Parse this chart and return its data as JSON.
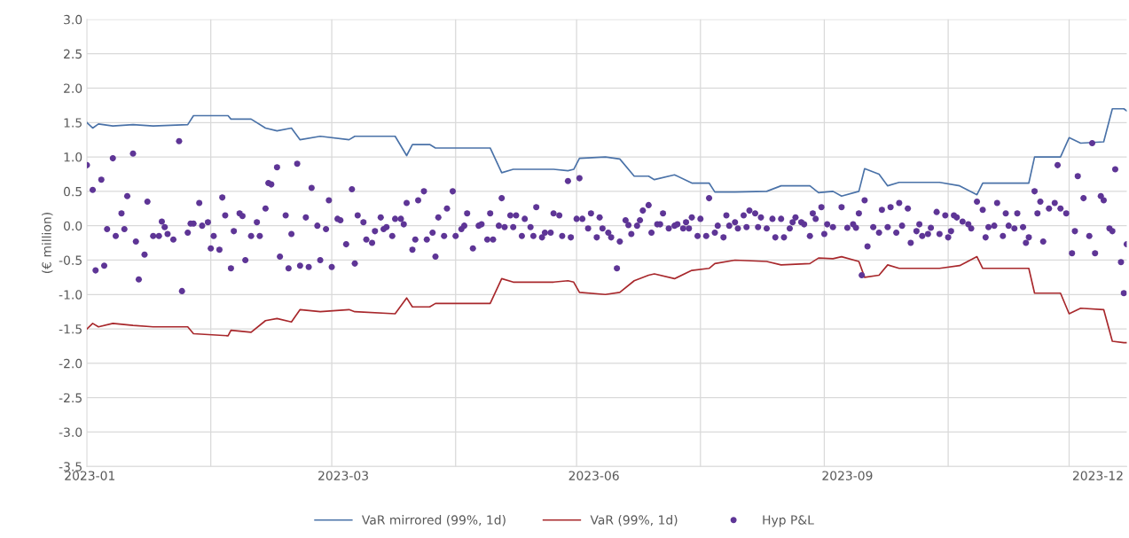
{
  "chart_data": {
    "type": "line",
    "ylabel": "(€ million)",
    "xlim": [
      "2023-01-02",
      "2023-12-29"
    ],
    "xticks": [
      {
        "value": "2023-01-03",
        "label": "2023-01"
      },
      {
        "value": "2023-02-14",
        "label": null
      },
      {
        "value": "2023-03-28",
        "label": null
      },
      {
        "value": "2023-04-01",
        "label": "2023-03"
      },
      {
        "value": "2023-05-10",
        "label": null
      },
      {
        "value": "2023-06-21",
        "label": null
      },
      {
        "value": "2023-06-27",
        "label": "2023-06"
      },
      {
        "value": "2023-08-03",
        "label": null
      },
      {
        "value": "2023-09-15",
        "label": null
      },
      {
        "value": "2023-09-23",
        "label": "2023-09"
      },
      {
        "value": "2023-10-28",
        "label": null
      },
      {
        "value": "2023-12-09",
        "label": null
      },
      {
        "value": "2023-12-19",
        "label": "2023-12"
      }
    ],
    "ylim": [
      -3.5,
      3.0
    ],
    "yticks": [
      {
        "value": -3.5,
        "label": "-3.5"
      },
      {
        "value": -3,
        "label": "-3.0"
      },
      {
        "value": -2.5,
        "label": "-2.5"
      },
      {
        "value": -2,
        "label": "-2.0"
      },
      {
        "value": -1.5,
        "label": "-1.5"
      },
      {
        "value": -1,
        "label": "-1.0"
      },
      {
        "value": -0.5,
        "label": "-0.5"
      },
      {
        "value": 0,
        "label": "0.0"
      },
      {
        "value": 0.5,
        "label": "0.5"
      },
      {
        "value": 1,
        "label": "1.0"
      },
      {
        "value": 1.5,
        "label": "1.5"
      },
      {
        "value": 2,
        "label": "2.0"
      },
      {
        "value": 2.5,
        "label": "2.5"
      },
      {
        "value": 3,
        "label": "3.0"
      }
    ],
    "grid": true,
    "legend": "bottom",
    "line_style": "solid",
    "x": [
      "2023-01-02",
      "2023-01-04",
      "2023-01-06",
      "2023-01-11",
      "2023-01-18",
      "2023-01-25",
      "2023-02-06",
      "2023-02-08",
      "2023-02-20",
      "2023-02-21",
      "2023-02-28",
      "2023-03-05",
      "2023-03-09",
      "2023-03-14",
      "2023-03-17",
      "2023-03-24",
      "2023-04-03",
      "2023-04-05",
      "2023-04-19",
      "2023-04-23",
      "2023-04-25",
      "2023-05-01",
      "2023-05-03",
      "2023-05-22",
      "2023-05-26",
      "2023-05-30",
      "2023-06-13",
      "2023-06-18",
      "2023-06-20",
      "2023-06-22",
      "2023-07-01",
      "2023-07-06",
      "2023-07-11",
      "2023-07-16",
      "2023-07-18",
      "2023-07-25",
      "2023-07-31",
      "2023-08-06",
      "2023-08-08",
      "2023-08-15",
      "2023-08-26",
      "2023-08-31",
      "2023-09-10",
      "2023-09-13",
      "2023-09-18",
      "2023-09-21",
      "2023-09-27",
      "2023-09-29",
      "2023-10-04",
      "2023-10-07",
      "2023-10-11",
      "2023-10-25",
      "2023-11-01",
      "2023-11-07",
      "2023-11-09",
      "2023-11-25",
      "2023-11-27",
      "2023-12-06",
      "2023-12-09",
      "2023-12-13",
      "2023-12-21",
      "2023-12-24",
      "2023-12-28",
      "2023-12-29"
    ],
    "series": [
      {
        "name": "VaR mirrored (99%, 1d)",
        "color": "#4a72a8",
        "values": [
          1.5,
          1.42,
          1.48,
          1.45,
          1.47,
          1.45,
          1.47,
          1.6,
          1.6,
          1.55,
          1.55,
          1.42,
          1.38,
          1.42,
          1.25,
          1.3,
          1.25,
          1.3,
          1.3,
          1.02,
          1.18,
          1.18,
          1.13,
          1.13,
          0.77,
          0.82,
          0.82,
          0.8,
          0.82,
          0.98,
          1.0,
          0.97,
          0.72,
          0.72,
          0.67,
          0.74,
          0.62,
          0.62,
          0.49,
          0.49,
          0.5,
          0.58,
          0.58,
          0.48,
          0.5,
          0.43,
          0.5,
          0.83,
          0.75,
          0.58,
          0.63,
          0.63,
          0.58,
          0.45,
          0.62,
          0.62,
          1.0,
          1.0,
          1.28,
          1.2,
          1.22,
          1.7,
          1.7,
          1.67
        ]
      },
      {
        "name": "VaR (99%, 1d)",
        "color": "#a8282c",
        "values": [
          -1.5,
          -1.42,
          -1.47,
          -1.42,
          -1.45,
          -1.47,
          -1.47,
          -1.57,
          -1.6,
          -1.52,
          -1.55,
          -1.38,
          -1.35,
          -1.4,
          -1.22,
          -1.25,
          -1.22,
          -1.25,
          -1.28,
          -1.05,
          -1.18,
          -1.18,
          -1.13,
          -1.13,
          -0.77,
          -0.82,
          -0.82,
          -0.8,
          -0.82,
          -0.97,
          -1.0,
          -0.97,
          -0.8,
          -0.72,
          -0.7,
          -0.77,
          -0.65,
          -0.62,
          -0.55,
          -0.5,
          -0.52,
          -0.57,
          -0.55,
          -0.47,
          -0.48,
          -0.45,
          -0.52,
          -0.75,
          -0.72,
          -0.57,
          -0.62,
          -0.62,
          -0.58,
          -0.45,
          -0.62,
          -0.62,
          -0.98,
          -0.98,
          -1.28,
          -1.2,
          -1.22,
          -1.68,
          -1.7,
          -1.7
        ]
      },
      {
        "name": "Hyp P&L",
        "type": "scatter",
        "color": "#5e3596",
        "marker": "circle",
        "x": [
          "2023-01-02",
          "2023-01-04",
          "2023-01-05",
          "2023-01-07",
          "2023-01-08",
          "2023-01-09",
          "2023-01-11",
          "2023-01-12",
          "2023-01-14",
          "2023-01-15",
          "2023-01-16",
          "2023-01-18",
          "2023-01-19",
          "2023-01-20",
          "2023-01-22",
          "2023-01-23",
          "2023-01-25",
          "2023-01-27",
          "2023-01-28",
          "2023-01-29",
          "2023-01-30",
          "2023-02-01",
          "2023-02-03",
          "2023-02-04",
          "2023-02-06",
          "2023-02-07",
          "2023-02-08",
          "2023-02-10",
          "2023-02-11",
          "2023-02-13",
          "2023-02-14",
          "2023-02-15",
          "2023-02-17",
          "2023-02-18",
          "2023-02-19",
          "2023-02-21",
          "2023-02-22",
          "2023-02-24",
          "2023-02-25",
          "2023-02-26",
          "2023-02-28",
          "2023-03-02",
          "2023-03-03",
          "2023-03-05",
          "2023-03-06",
          "2023-03-07",
          "2023-03-09",
          "2023-03-10",
          "2023-03-12",
          "2023-03-13",
          "2023-03-14",
          "2023-03-16",
          "2023-03-17",
          "2023-03-19",
          "2023-03-20",
          "2023-03-21",
          "2023-03-23",
          "2023-03-24",
          "2023-03-26",
          "2023-03-27",
          "2023-03-28",
          "2023-03-30",
          "2023-03-31",
          "2023-04-02",
          "2023-04-04",
          "2023-04-05",
          "2023-04-06",
          "2023-04-08",
          "2023-04-09",
          "2023-04-11",
          "2023-04-12",
          "2023-04-14",
          "2023-04-15",
          "2023-04-16",
          "2023-04-18",
          "2023-04-19",
          "2023-04-21",
          "2023-04-22",
          "2023-04-23",
          "2023-04-25",
          "2023-04-26",
          "2023-04-27",
          "2023-04-29",
          "2023-04-30",
          "2023-05-02",
          "2023-05-03",
          "2023-05-04",
          "2023-05-06",
          "2023-05-07",
          "2023-05-09",
          "2023-05-10",
          "2023-05-12",
          "2023-05-13",
          "2023-05-14",
          "2023-05-16",
          "2023-05-18",
          "2023-05-19",
          "2023-05-21",
          "2023-05-22",
          "2023-05-23",
          "2023-05-25",
          "2023-05-26",
          "2023-05-27",
          "2023-05-29",
          "2023-05-30",
          "2023-05-31",
          "2023-06-02",
          "2023-06-03",
          "2023-06-05",
          "2023-06-06",
          "2023-06-07",
          "2023-06-09",
          "2023-06-10",
          "2023-06-12",
          "2023-06-13",
          "2023-06-15",
          "2023-06-16",
          "2023-06-18",
          "2023-06-19",
          "2023-06-21",
          "2023-06-22",
          "2023-06-23",
          "2023-06-25",
          "2023-06-26",
          "2023-06-28",
          "2023-06-29",
          "2023-06-30",
          "2023-07-02",
          "2023-07-03",
          "2023-07-05",
          "2023-07-06",
          "2023-07-08",
          "2023-07-09",
          "2023-07-10",
          "2023-07-12",
          "2023-07-13",
          "2023-07-14",
          "2023-07-16",
          "2023-07-17",
          "2023-07-19",
          "2023-07-20",
          "2023-07-21",
          "2023-07-23",
          "2023-07-25",
          "2023-07-26",
          "2023-07-28",
          "2023-07-29",
          "2023-07-30",
          "2023-07-31",
          "2023-08-02",
          "2023-08-03",
          "2023-08-05",
          "2023-08-06",
          "2023-08-08",
          "2023-08-09",
          "2023-08-11",
          "2023-08-12",
          "2023-08-13",
          "2023-08-15",
          "2023-08-16",
          "2023-08-18",
          "2023-08-19",
          "2023-08-20",
          "2023-08-22",
          "2023-08-23",
          "2023-08-24",
          "2023-08-26",
          "2023-08-28",
          "2023-08-29",
          "2023-08-31",
          "2023-09-01",
          "2023-09-03",
          "2023-09-04",
          "2023-09-05",
          "2023-09-07",
          "2023-09-08",
          "2023-09-10",
          "2023-09-11",
          "2023-09-12",
          "2023-09-14",
          "2023-09-15",
          "2023-09-16",
          "2023-09-18",
          "2023-09-21",
          "2023-09-23",
          "2023-09-25",
          "2023-09-26",
          "2023-09-27",
          "2023-09-28",
          "2023-09-29",
          "2023-09-30",
          "2023-10-02",
          "2023-10-04",
          "2023-10-05",
          "2023-10-07",
          "2023-10-08",
          "2023-10-10",
          "2023-10-11",
          "2023-10-12",
          "2023-10-14",
          "2023-10-15",
          "2023-10-17",
          "2023-10-18",
          "2023-10-19",
          "2023-10-21",
          "2023-10-22",
          "2023-10-24",
          "2023-10-25",
          "2023-10-27",
          "2023-10-28",
          "2023-10-29",
          "2023-10-30",
          "2023-10-31",
          "2023-11-02",
          "2023-11-04",
          "2023-11-05",
          "2023-11-07",
          "2023-11-09",
          "2023-11-10",
          "2023-11-11",
          "2023-11-13",
          "2023-11-14",
          "2023-11-16",
          "2023-11-17",
          "2023-11-18",
          "2023-11-20",
          "2023-11-21",
          "2023-11-23",
          "2023-11-24",
          "2023-11-25",
          "2023-11-27",
          "2023-11-28",
          "2023-11-29",
          "2023-11-30",
          "2023-12-02",
          "2023-12-04",
          "2023-12-05",
          "2023-12-06",
          "2023-12-08",
          "2023-12-10",
          "2023-12-11",
          "2023-12-12",
          "2023-12-14",
          "2023-12-16",
          "2023-12-17",
          "2023-12-18",
          "2023-12-20",
          "2023-12-21",
          "2023-12-23",
          "2023-12-24",
          "2023-12-25",
          "2023-12-27",
          "2023-12-28",
          "2023-12-29"
        ],
        "values": [
          0.88,
          0.52,
          -0.65,
          0.67,
          -0.58,
          -0.05,
          0.98,
          -0.15,
          0.18,
          -0.05,
          0.43,
          1.05,
          -0.23,
          -0.78,
          -0.42,
          0.35,
          -0.15,
          -0.15,
          0.06,
          -0.02,
          -0.12,
          -0.2,
          1.23,
          -0.95,
          -0.1,
          0.03,
          0.03,
          0.33,
          0.0,
          0.05,
          -0.33,
          -0.15,
          -0.35,
          0.41,
          0.15,
          -0.62,
          -0.08,
          0.18,
          0.14,
          -0.5,
          -0.15,
          0.05,
          -0.15,
          0.25,
          0.62,
          0.6,
          0.85,
          -0.45,
          0.15,
          -0.62,
          -0.12,
          0.9,
          -0.58,
          0.12,
          -0.6,
          0.55,
          0.0,
          -0.5,
          -0.05,
          0.37,
          -0.6,
          0.1,
          0.08,
          -0.27,
          0.53,
          -0.55,
          0.15,
          0.05,
          -0.2,
          -0.25,
          -0.08,
          0.12,
          -0.05,
          -0.02,
          -0.15,
          0.1,
          0.1,
          0.02,
          0.33,
          -0.35,
          -0.2,
          0.37,
          0.5,
          -0.2,
          -0.1,
          -0.45,
          0.12,
          -0.15,
          0.25,
          0.5,
          -0.15,
          -0.05,
          0.0,
          0.18,
          -0.33,
          0.0,
          0.02,
          -0.2,
          0.18,
          -0.2,
          0.0,
          0.4,
          -0.02,
          0.15,
          -0.02,
          0.15,
          -0.15,
          0.1,
          -0.02,
          -0.15,
          0.27,
          -0.17,
          -0.1,
          -0.1,
          0.18,
          0.15,
          -0.15,
          0.65,
          -0.17,
          0.1,
          0.69,
          0.1,
          -0.04,
          0.18,
          -0.17,
          0.12,
          -0.04,
          -0.1,
          -0.17,
          -0.62,
          -0.23,
          0.08,
          0.01,
          -0.12,
          0.0,
          0.08,
          0.22,
          0.3,
          -0.1,
          0.02,
          0.02,
          0.18,
          -0.04,
          0.0,
          0.02,
          -0.04,
          0.05,
          -0.04,
          0.12,
          -0.15,
          0.1,
          -0.15,
          0.4,
          -0.1,
          0.0,
          -0.17,
          0.15,
          0.0,
          0.05,
          -0.04,
          0.15,
          -0.02,
          0.22,
          0.18,
          -0.02,
          0.12,
          -0.04,
          0.1,
          -0.17,
          0.1,
          -0.17,
          -0.04,
          0.05,
          0.12,
          0.05,
          0.02,
          -0.15,
          0.18,
          0.1,
          0.27,
          -0.12,
          0.02,
          -0.02,
          0.27,
          -0.03,
          0.02,
          -0.03,
          0.18,
          -0.72,
          0.37,
          -0.3,
          -0.02,
          -0.1,
          0.23,
          -0.02,
          0.27,
          -0.1,
          0.33,
          0.0,
          0.25,
          -0.25,
          -0.08,
          0.02,
          -0.15,
          -0.12,
          -0.03,
          0.2,
          -0.12,
          0.15,
          -0.17,
          -0.08,
          0.15,
          0.12,
          0.06,
          0.02,
          -0.04,
          0.35,
          0.23,
          -0.17,
          -0.02,
          0.0,
          0.33,
          -0.15,
          0.18,
          0.0,
          -0.04,
          0.18,
          -0.02,
          -0.25,
          -0.17,
          0.5,
          0.18,
          0.35,
          -0.23,
          0.25,
          0.33,
          0.88,
          0.25,
          0.18,
          -0.4,
          -0.08,
          0.72,
          0.4,
          -0.15,
          1.2,
          -0.4,
          0.43,
          0.37,
          -0.04,
          -0.08,
          0.82,
          -0.53,
          -0.98,
          -0.27
        ]
      }
    ]
  }
}
